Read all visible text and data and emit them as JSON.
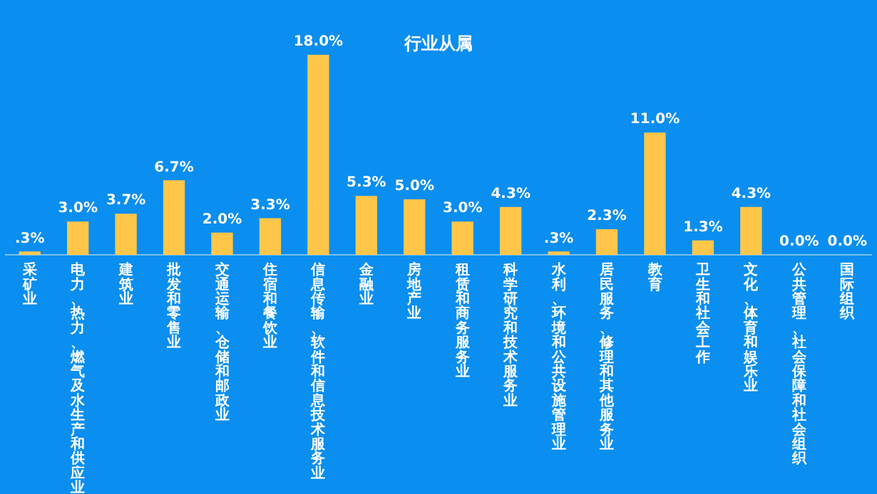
{
  "chart_data": {
    "type": "bar",
    "title": "行业从属",
    "categories": [
      "采矿业",
      "电力、热力、燃气及水生产和供应业",
      "建筑业",
      "批发和零售业",
      "交通运输、仓储和邮政业",
      "住宿和餐饮业",
      "信息传输、软件和信息技术服务业",
      "金融业",
      "房地产业",
      "租赁和商务服务业",
      "科学研究和技术服务业",
      "水利、环境和公共设施管理业",
      "居民服务、修理和其他服务业",
      "教育",
      "卫生和社会工作",
      "文化、体育和娱乐业",
      "公共管理、社会保障和社会组织",
      "国际组织"
    ],
    "values": [
      0.3,
      3.0,
      3.7,
      6.7,
      2.0,
      3.3,
      18.0,
      5.3,
      5.0,
      3.0,
      4.3,
      0.3,
      2.3,
      11.0,
      1.3,
      4.3,
      0.0,
      0.0
    ],
    "value_labels": [
      ".3%",
      "3.0%",
      "3.7%",
      "6.7%",
      "2.0%",
      "3.3%",
      "18.0%",
      "5.3%",
      "5.0%",
      "3.0%",
      "4.3%",
      ".3%",
      "2.3%",
      "11.0%",
      "1.3%",
      "4.3%",
      "0.0%",
      "0.0%"
    ],
    "color": "#ffc64a",
    "grid": false,
    "legend": false
  }
}
